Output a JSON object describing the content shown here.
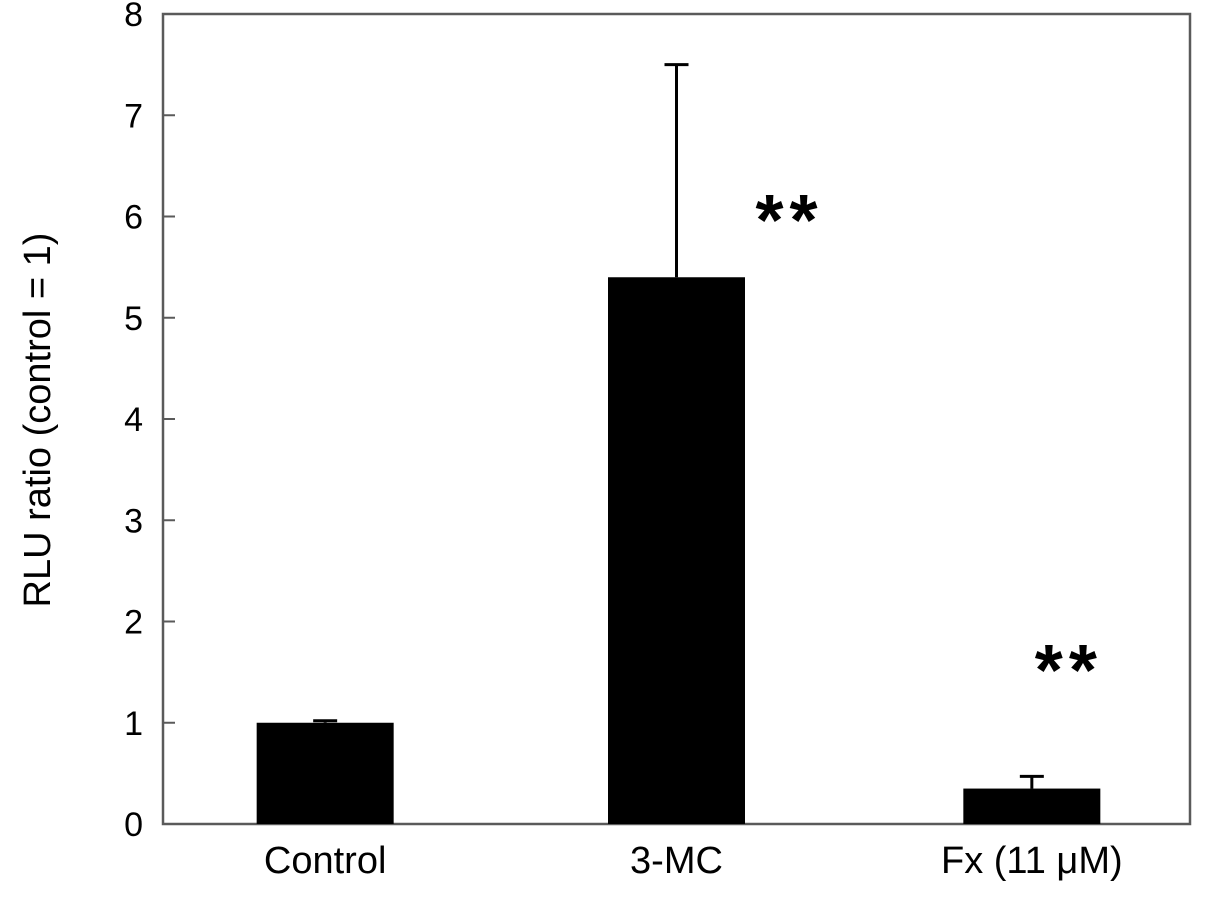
{
  "chart_data": {
    "type": "bar",
    "categories": [
      "Control",
      "3-MC",
      "Fx (11 μM)"
    ],
    "values": [
      1.0,
      5.4,
      0.35
    ],
    "errors": [
      0.02,
      2.1,
      0.12
    ],
    "significance": [
      "",
      "**",
      "**"
    ],
    "ylabel": "RLU ratio (control = 1)",
    "xlabel": "",
    "ylim": [
      0,
      8
    ],
    "yticks": [
      "0",
      "1",
      "2",
      "3",
      "4",
      "5",
      "6",
      "7",
      "8"
    ],
    "grid": false,
    "bar_color": "#000000"
  }
}
